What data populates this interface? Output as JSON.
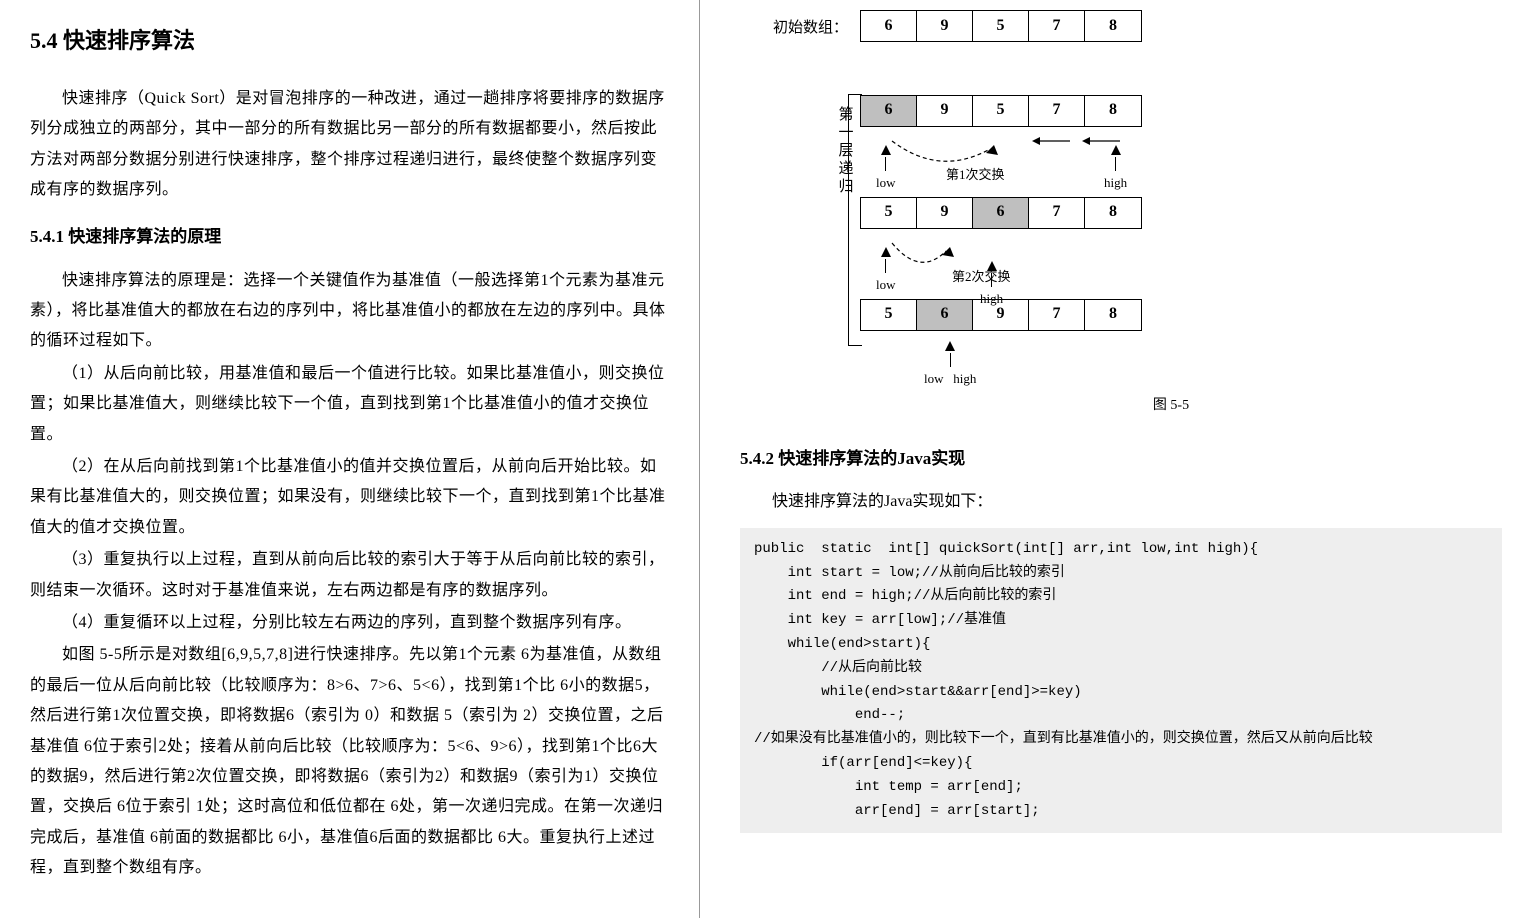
{
  "left": {
    "title": "5.4 快速排序算法",
    "intro": "快速排序（Quick Sort）是对冒泡排序的一种改进，通过一趟排序将要排序的数据序列分成独立的两部分，其中一部分的所有数据比另一部分的所有数据都要小，然后按此方法对两部分数据分别进行快速排序，整个排序过程递归进行，最终使整个数据序列变成有序的数据序列。",
    "sub1": "5.4.1 快速排序算法的原理",
    "p1": "快速排序算法的原理是：选择一个关键值作为基准值（一般选择第1个元素为基准元素），将比基准值大的都放在右边的序列中，将比基准值小的都放在左边的序列中。具体的循环过程如下。",
    "p2": "（1）从后向前比较，用基准值和最后一个值进行比较。如果比基准值小，则交换位置；如果比基准值大，则继续比较下一个值，直到找到第1个比基准值小的值才交换位置。",
    "p3": "（2）在从后向前找到第1个比基准值小的值并交换位置后，从前向后开始比较。如果有比基准值大的，则交换位置；如果没有，则继续比较下一个，直到找到第1个比基准值大的值才交换位置。",
    "p4": "（3）重复执行以上过程，直到从前向后比较的索引大于等于从后向前比较的索引，则结束一次循环。这时对于基准值来说，左右两边都是有序的数据序列。",
    "p5": "（4）重复循环以上过程，分别比较左右两边的序列，直到整个数据序列有序。",
    "p6": "如图 5-5所示是对数组[6,9,5,7,8]进行快速排序。先以第1个元素 6为基准值，从数组的最后一位从后向前比较（比较顺序为：8>6、7>6、5<6），找到第1个比 6小的数据5，然后进行第1次位置交换，即将数据6（索引为 0）和数据 5（索引为 2）交换位置，之后基准值 6位于索引2处；接着从前向后比较（比较顺序为：5<6、9>6），找到第1个比6大的数据9，然后进行第2次位置交换，即将数据6（索引为2）和数据9（索引为1）交换位置，交换后 6位于索引 1处；这时高位和低位都在 6处，第一次递归完成。在第一次递归完成后，基准值 6前面的数据都比 6小，基准值6后面的数据都比 6大。重复执行上述过程，直到整个数组有序。"
  },
  "right": {
    "sub2": "5.4.2 快速排序算法的Java实现",
    "intro2": "快速排序算法的Java实现如下：",
    "diagram": {
      "init_label": "初始数组：",
      "side_label": "第一层递归",
      "row0": [
        "6",
        "9",
        "5",
        "7",
        "8"
      ],
      "row1": {
        "cells": [
          "6",
          "9",
          "5",
          "7",
          "8"
        ],
        "hl": [
          0
        ]
      },
      "anno1": {
        "low": "low",
        "mid": "第1次交换",
        "high": "high"
      },
      "row2": {
        "cells": [
          "5",
          "9",
          "6",
          "7",
          "8"
        ],
        "hl": [
          2
        ]
      },
      "anno2": {
        "low": "low",
        "mid": "第2次交换",
        "high": "high"
      },
      "row3": {
        "cells": [
          "5",
          "6",
          "9",
          "7",
          "8"
        ],
        "hl": [
          1
        ]
      },
      "anno3": {
        "low": "low",
        "high": "high"
      },
      "caption": "图 5-5"
    },
    "code": "public  static  int[] quickSort(int[] arr,int low,int high){\n    int start = low;//从前向后比较的索引\n    int end = high;//从后向前比较的索引\n    int key = arr[low];//基准值\n    while(end>start){\n        //从后向前比较\n        while(end>start&&arr[end]>=key)\n            end--;\n//如果没有比基准值小的，则比较下一个，直到有比基准值小的，则交换位置，然后又从前向后比较\n        if(arr[end]<=key){\n            int temp = arr[end];\n            arr[end] = arr[start];"
  },
  "colors": {
    "code_bg": "#eeeeee",
    "highlight": "#bfbfbf",
    "border": "#000000"
  }
}
